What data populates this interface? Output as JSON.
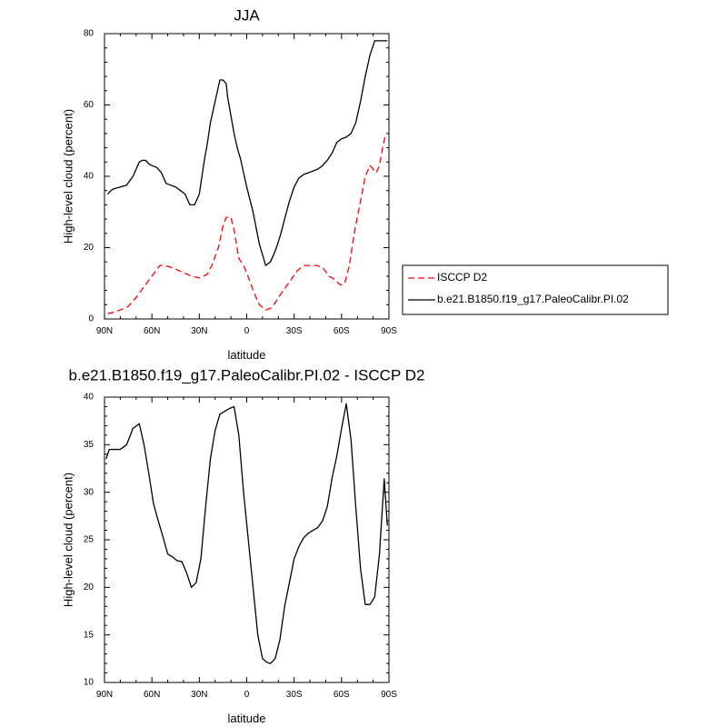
{
  "chart_data": [
    {
      "type": "line",
      "title": "JJA",
      "xlabel": "latitude",
      "ylabel": "High-level cloud (percent)",
      "xlim": [
        90,
        -90
      ],
      "ylim": [
        0,
        80
      ],
      "x_ticks": [
        90,
        60,
        30,
        0,
        -30,
        -60,
        -90
      ],
      "x_tick_labels": [
        "90N",
        "60N",
        "30N",
        "0",
        "30S",
        "60S",
        "90S"
      ],
      "y_ticks": [
        0,
        20,
        40,
        60,
        80
      ],
      "y_tick_labels": [
        "0",
        "20",
        "40",
        "60",
        "80"
      ],
      "legend_position": "right",
      "series": [
        {
          "name": "ISCCP D2",
          "color": "#ff0000",
          "dash": "dashed",
          "x": [
            88,
            85,
            80,
            75,
            70,
            65,
            60,
            55,
            52,
            48,
            45,
            40,
            35,
            30,
            25,
            22,
            18,
            15,
            13,
            10,
            8,
            5,
            2,
            0,
            -2,
            -5,
            -8,
            -12,
            -15,
            -18,
            -20,
            -24,
            -28,
            -32,
            -36,
            -40,
            -44,
            -48,
            -52,
            -56,
            -58,
            -60,
            -62,
            -65,
            -68,
            -72,
            -75,
            -78,
            -80,
            -82,
            -84,
            -86,
            -88
          ],
          "y": [
            1.5,
            1.8,
            2.5,
            3.5,
            6,
            9,
            12,
            15,
            15,
            14.5,
            14,
            13,
            12,
            11.5,
            12.5,
            15,
            20,
            26,
            28.5,
            28.5,
            25,
            17,
            15,
            13,
            10.5,
            7,
            4,
            2.5,
            3,
            4.5,
            6,
            8.5,
            11,
            13.5,
            15,
            15,
            15,
            14.5,
            12,
            11,
            10,
            9.5,
            10,
            15,
            24,
            33,
            40,
            43,
            42,
            41,
            43,
            48,
            52
          ]
        },
        {
          "name": "b.e21.B1850.f19_g17.PaleoCalibr.PI.02",
          "color": "#000000",
          "dash": "solid",
          "x": [
            88,
            86,
            84,
            80,
            76,
            72,
            68,
            66,
            64,
            62,
            60,
            57,
            54,
            51,
            48,
            45,
            42,
            39,
            36,
            33,
            30,
            27,
            25,
            23,
            20,
            17,
            15,
            13,
            12,
            10,
            8,
            6,
            4,
            0,
            -4,
            -8,
            -10,
            -12,
            -15,
            -18,
            -21,
            -24,
            -27,
            -30,
            -33,
            -36,
            -39,
            -42,
            -45,
            -48,
            -51,
            -54,
            -57,
            -60,
            -63,
            -66,
            -69,
            -72,
            -75,
            -78,
            -81,
            -84,
            -87,
            -89
          ],
          "y": [
            35,
            36,
            36.5,
            37,
            37.5,
            40,
            44,
            44.5,
            44.5,
            43.5,
            43,
            42.5,
            41,
            38,
            37.5,
            37,
            36,
            35,
            32,
            32,
            35,
            44,
            49,
            55,
            61,
            67,
            67,
            66,
            62,
            57,
            52,
            48,
            45,
            37,
            30,
            21,
            18,
            15,
            16,
            19,
            23,
            28,
            33,
            37,
            39.5,
            40.5,
            41,
            41.5,
            42,
            43,
            44.5,
            46.5,
            49.5,
            50.5,
            51,
            52,
            55,
            61,
            68,
            74,
            78,
            78,
            78,
            78
          ]
        }
      ]
    },
    {
      "type": "line",
      "title": "b.e21.B1850.f19_g17.PaleoCalibr.PI.02 - ISCCP D2",
      "xlabel": "latitude",
      "ylabel": "High-level cloud (percent)",
      "xlim": [
        90,
        -90
      ],
      "ylim": [
        10,
        40
      ],
      "x_ticks": [
        90,
        60,
        30,
        0,
        -30,
        -60,
        -90
      ],
      "x_tick_labels": [
        "90N",
        "60N",
        "30N",
        "0",
        "30S",
        "60S",
        "90S"
      ],
      "y_ticks": [
        10,
        15,
        20,
        25,
        30,
        35,
        40
      ],
      "y_tick_labels": [
        "10",
        "15",
        "20",
        "25",
        "30",
        "35",
        "40"
      ],
      "series": [
        {
          "color": "#000000",
          "dash": "solid",
          "x": [
            89,
            87,
            84,
            80,
            76,
            72,
            68,
            65,
            62,
            59,
            56,
            53,
            50,
            47,
            44,
            41,
            38,
            35,
            32,
            29,
            26,
            23,
            20,
            17,
            14,
            11,
            8,
            5,
            2,
            -1,
            -4,
            -7,
            -10,
            -13,
            -15,
            -18,
            -21,
            -24,
            -27,
            -30,
            -33,
            -36,
            -39,
            -42,
            -45,
            -48,
            -51,
            -54,
            -57,
            -60,
            -63,
            -66,
            -69,
            -72,
            -75,
            -78,
            -81,
            -84,
            -87,
            -89
          ],
          "y": [
            33.5,
            34.5,
            34.5,
            34.5,
            35,
            36.7,
            37.2,
            35,
            32,
            28.8,
            27,
            25.3,
            23.5,
            23.2,
            22.8,
            22.7,
            21.5,
            20,
            20.5,
            23,
            28.5,
            33.5,
            36.5,
            38.2,
            38.5,
            38.8,
            39,
            36,
            30,
            25,
            20,
            15,
            12.5,
            12.1,
            12,
            12.5,
            14.5,
            18,
            20.5,
            23,
            24.3,
            25.2,
            25.7,
            26,
            26.3,
            27,
            28.5,
            31.5,
            33.8,
            36.7,
            39.3,
            35.5,
            28.5,
            22,
            18.2,
            18.2,
            19,
            23.5,
            31.4,
            26.5
          ]
        }
      ]
    }
  ]
}
